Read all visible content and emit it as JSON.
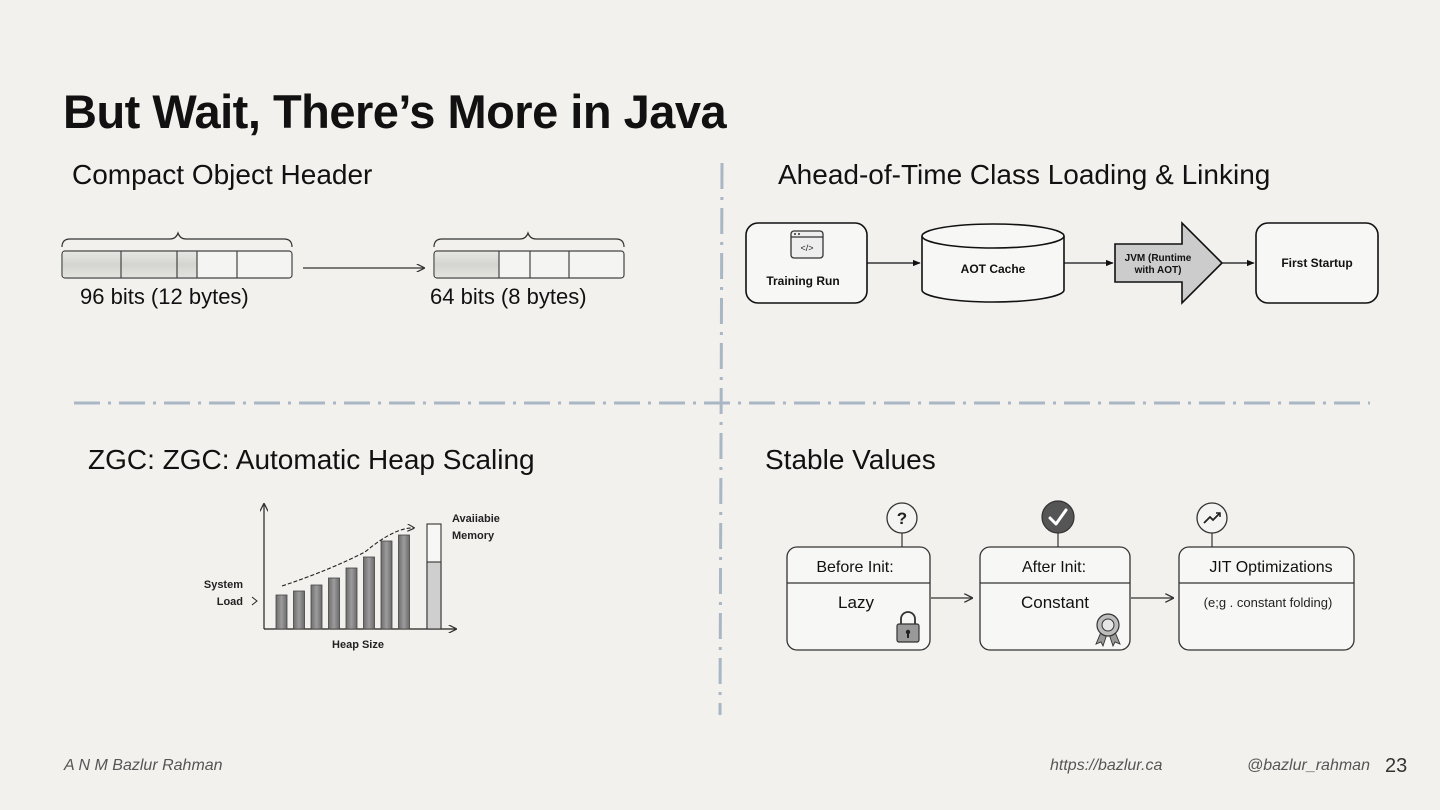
{
  "slide": {
    "title": "But Wait, There’s More in Java",
    "page_number": "23"
  },
  "sections": {
    "compact_header": {
      "heading": "Compact Object Header",
      "before_label": "96 bits (12 bytes)",
      "after_label": "64 bits (8 bytes)"
    },
    "aot": {
      "heading": "Ahead-of-Time Class Loading & Linking",
      "training_run": "Training Run",
      "aot_cache": "AOT Cache",
      "jvm_line1": "JVM (Runtime",
      "jvm_line2": "with AOT)",
      "first_startup": "First Startup"
    },
    "zgc": {
      "heading": "ZGC: ZGC: Automatic Heap Scaling",
      "y_label_line1": "System",
      "y_label_line2": "Load",
      "x_label": "Heap Size",
      "avail_line1": "Avaiiabie",
      "avail_line2": "Memory"
    },
    "stable_values": {
      "heading": "Stable Values",
      "boxes": [
        {
          "header": "Before Init:",
          "body": "Lazy",
          "badge_icon": "question-icon",
          "corner_icon": "padlock-icon"
        },
        {
          "header": "After Init:",
          "body": "Constant",
          "badge_icon": "checkmark-icon",
          "corner_icon": "award-ribbon-icon"
        },
        {
          "header": "JIT Optimizations",
          "body": "(e;g . constant folding)",
          "badge_icon": "trend-up-icon",
          "corner_icon": ""
        }
      ]
    }
  },
  "footer": {
    "author": "A N M Bazlur Rahman",
    "url": "https://bazlur.ca",
    "handle": "@bazlur_rahman"
  },
  "colors": {
    "background": "#f2f1ee",
    "divider": "#a9b6c4",
    "jvm_arrow_fill": "#cccccc"
  }
}
